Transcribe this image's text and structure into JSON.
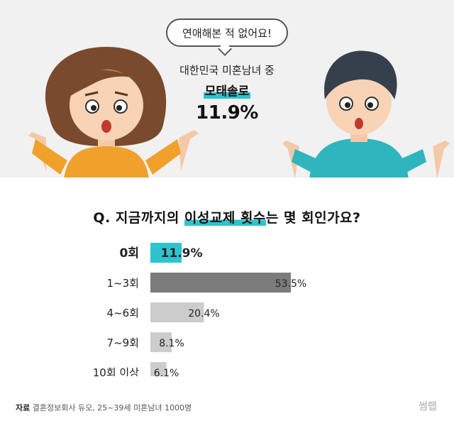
{
  "hero": {
    "bubble": "연애해본 적 없어요!",
    "subtitle": "대한민국 미혼남녀 중",
    "keyword": "모태솔로",
    "figure": "11.9%"
  },
  "question": {
    "prefix": "Q. 지금까지의 ",
    "highlight": "이성교제 횟수",
    "suffix": "는 몇 회인가요?"
  },
  "chart_data": {
    "type": "bar",
    "orientation": "horizontal",
    "categories": [
      "0회",
      "1~3회",
      "4~6회",
      "7~9회",
      "10회 이상"
    ],
    "values": [
      11.9,
      53.5,
      20.4,
      8.1,
      6.1
    ],
    "value_labels": [
      "11.9%",
      "53.5%",
      "20.4%",
      "8.1%",
      "6.1%"
    ],
    "colors": [
      "#2ec4cf",
      "#7b7b7b",
      "#cccccc",
      "#cccccc",
      "#cccccc"
    ],
    "highlight_index": 0,
    "max": 53.5
  },
  "footer": {
    "source_label": "자료",
    "source_text": " 결혼정보회사 듀오, 25~39세 미혼남녀 1000명",
    "brand": "썸랩"
  }
}
